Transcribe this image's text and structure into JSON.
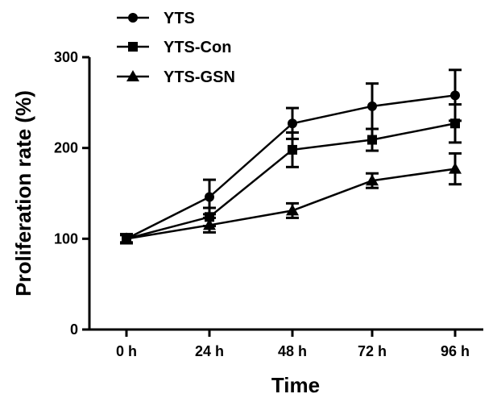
{
  "chart_data": {
    "type": "line",
    "title": "",
    "xlabel": "Time",
    "ylabel": "Proliferation rate (%)",
    "categories": [
      "0 h",
      "24 h",
      "48 h",
      "72 h",
      "96 h"
    ],
    "ylim": [
      0,
      300
    ],
    "yticks": [
      0,
      100,
      200,
      300
    ],
    "grid": false,
    "legend_position": "top-left",
    "series": [
      {
        "name": "YTS",
        "marker": "circle",
        "color": "#000000",
        "values": [
          100,
          146,
          227,
          246,
          258
        ],
        "errors": [
          5,
          19,
          17,
          25,
          28
        ]
      },
      {
        "name": "YTS-Con",
        "marker": "square",
        "color": "#000000",
        "values": [
          100,
          124,
          198,
          209,
          227
        ],
        "errors": [
          5,
          10,
          19,
          12,
          21
        ]
      },
      {
        "name": "YTS-GSN",
        "marker": "triangle",
        "color": "#000000",
        "values": [
          100,
          115,
          131,
          164,
          177
        ],
        "errors": [
          4,
          8,
          8,
          8,
          17
        ]
      }
    ]
  }
}
